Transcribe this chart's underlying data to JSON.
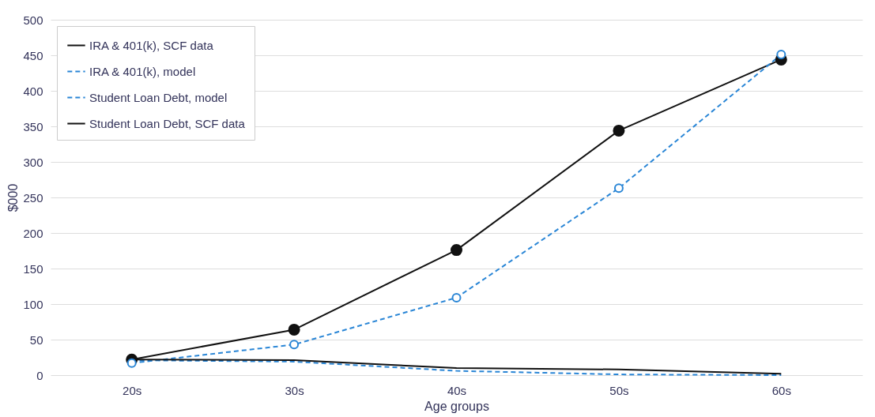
{
  "chart_data": {
    "type": "line",
    "xlabel": "Age groups",
    "ylabel": "$000",
    "categories": [
      "20s",
      "30s",
      "40s",
      "50s",
      "60s"
    ],
    "ylim": [
      0,
      500
    ],
    "yticks": [
      0,
      50,
      100,
      150,
      200,
      250,
      300,
      350,
      400,
      450,
      500
    ],
    "grid": "y",
    "legend": "top left",
    "series": [
      {
        "name": "IRA & 401(k), SCF data",
        "color": "#111111",
        "line_style": "solid",
        "marker": "circle",
        "values": [
          22,
          64,
          176,
          344,
          444
        ]
      },
      {
        "name": "IRA & 401(k), model",
        "color": "#2a86d6",
        "line_style": "dashed",
        "marker": "circle",
        "values": [
          17,
          43,
          109,
          263,
          451
        ]
      },
      {
        "name": "Student Loan Debt, model",
        "color": "#2a86d6",
        "line_style": "dashed",
        "marker": "none",
        "values": [
          21,
          19,
          6,
          1,
          0
        ]
      },
      {
        "name": "Student Loan Debt, SCF data",
        "color": "#111111",
        "line_style": "solid",
        "marker": "none",
        "values": [
          22,
          21,
          10,
          8,
          2
        ]
      }
    ]
  }
}
